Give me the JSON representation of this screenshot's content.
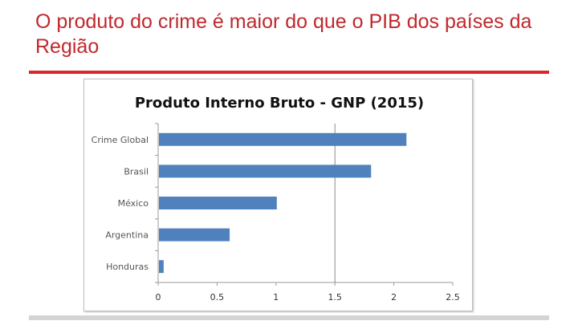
{
  "slide": {
    "title": "O produto do crime é maior do que o PIB dos países da Região"
  },
  "colors": {
    "title": "#c0282d",
    "rule": "#d9262c",
    "bar": "#4f81bd"
  },
  "chart_data": {
    "type": "bar",
    "orientation": "horizontal",
    "title": "Produto Interno Bruto - GNP (2015)",
    "xlabel": "",
    "ylabel": "",
    "categories": [
      "Crime Global",
      "Brasil",
      "México",
      "Argentina",
      "Honduras"
    ],
    "values": [
      2.1,
      1.8,
      1.0,
      0.6,
      0.04
    ],
    "xlim": [
      0,
      2.5
    ],
    "ticks": [
      "0",
      "0.5",
      "1",
      "1.5",
      "2",
      "2.5"
    ],
    "reference_line": 1.5,
    "legend": "none",
    "grid": false
  }
}
